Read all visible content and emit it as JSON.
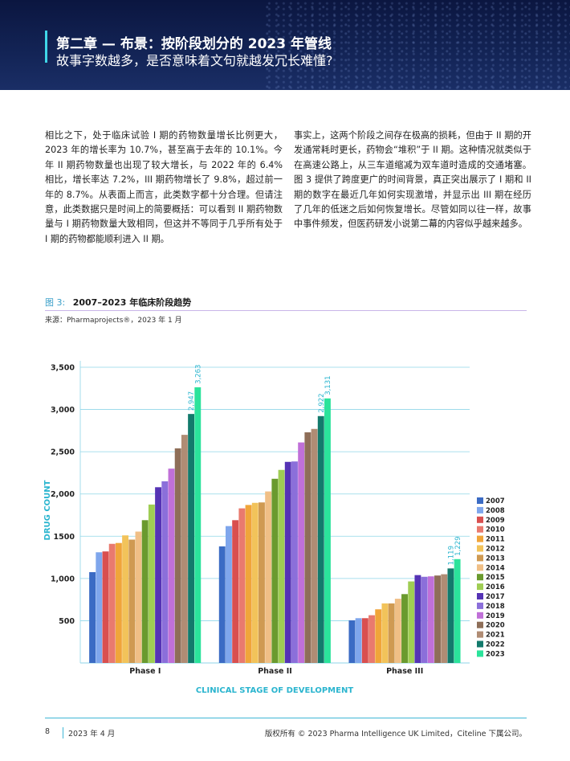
{
  "header": {
    "title": "第二章 — 布景：按阶段划分的 2023 年管线",
    "subtitle": "故事字数越多，是否意味着文句就越发冗长难懂?"
  },
  "body": {
    "left_column": "相比之下，处于临床试验 I 期的药物数量增长比例更大，2023 年的增长率为 10.7%，甚至高于去年的 10.1%。今年 II 期药物数量也出现了较大增长，与 2022 年的 6.4% 相比，增长率达 7.2%，III 期药物增长了 9.8%，超过前一年的 8.7%。从表面上而言，此类数字都十分合理。但请注意，此类数据只是时间上的简要概括：可以看到 II 期药物数量与 I 期药物数量大致相同，但这并不等同于几乎所有处于 I 期的药物都能顺利进入 II 期。",
    "right_column": "事实上，这两个阶段之间存在极高的损耗，但由于 II 期的开发通常耗时更长，药物会“堆积”于 II 期。这种情况就类似于在高速公路上，从三车道缩减为双车道时造成的交通堵塞。图 3 提供了跨度更广的时间背景，真正突出展示了 I 期和 II 期的数字在最近几年如何实现激增，并显示出 III 期在经历了几年的低迷之后如何恢复增长。尽管如同以往一样，故事中事件频发，但医药研发小说第二幕的内容似乎越来越多。"
  },
  "figure": {
    "number": "图 3:",
    "title": "2007–2023 年临床阶段趋势",
    "source": "来源：Pharmaprojects®，2023 年 1 月"
  },
  "chart_data": {
    "type": "bar",
    "xlabel": "CLINICAL STAGE OF DEVELOPMENT",
    "ylabel": "DRUG COUNT",
    "categories": [
      "Phase I",
      "Phase II",
      "Phase III"
    ],
    "ylim": [
      0,
      3500
    ],
    "yticks": [
      {
        "value": 500,
        "label": "500"
      },
      {
        "value": 1000,
        "label": "1,000"
      },
      {
        "value": 1500,
        "label": "1500"
      },
      {
        "value": 2000,
        "label": "2,000"
      },
      {
        "value": 2500,
        "label": "2,500"
      },
      {
        "value": 3000,
        "label": "3,000"
      },
      {
        "value": 3500,
        "label": "3,500"
      }
    ],
    "grid": true,
    "legend_position": "right",
    "series": [
      {
        "name": "2007",
        "color": "#3b6bc4",
        "values": [
          1075,
          1380,
          505
        ]
      },
      {
        "name": "2008",
        "color": "#7fa6ec",
        "values": [
          1310,
          1620,
          530
        ]
      },
      {
        "name": "2009",
        "color": "#d94f4f",
        "values": [
          1320,
          1690,
          530
        ]
      },
      {
        "name": "2010",
        "color": "#e97a6e",
        "values": [
          1410,
          1830,
          565
        ]
      },
      {
        "name": "2011",
        "color": "#f0a53a",
        "values": [
          1420,
          1870,
          635
        ]
      },
      {
        "name": "2012",
        "color": "#f2c35a",
        "values": [
          1510,
          1895,
          705
        ]
      },
      {
        "name": "2013",
        "color": "#cf9a52",
        "values": [
          1460,
          1900,
          705
        ]
      },
      {
        "name": "2014",
        "color": "#f0bf86",
        "values": [
          1555,
          2030,
          760
        ]
      },
      {
        "name": "2015",
        "color": "#6a9a2e",
        "values": [
          1690,
          2180,
          815
        ]
      },
      {
        "name": "2016",
        "color": "#9fcd53",
        "values": [
          1875,
          2285,
          965
        ]
      },
      {
        "name": "2017",
        "color": "#5533b5",
        "values": [
          2080,
          2380,
          1040
        ]
      },
      {
        "name": "2018",
        "color": "#8b6fda",
        "values": [
          2150,
          2385,
          1020
        ]
      },
      {
        "name": "2019",
        "color": "#c070d8",
        "values": [
          2300,
          2610,
          1025
        ]
      },
      {
        "name": "2020",
        "color": "#8e6e58",
        "values": [
          2540,
          2730,
          1035
        ]
      },
      {
        "name": "2021",
        "color": "#b08c74",
        "values": [
          2700,
          2770,
          1050
        ]
      },
      {
        "name": "2022",
        "color": "#137a6c",
        "values": [
          2947,
          2922,
          1119
        ]
      },
      {
        "name": "2023",
        "color": "#2be39b",
        "values": [
          3263,
          3131,
          1229
        ]
      }
    ],
    "data_labels": [
      {
        "series": "2022",
        "category": "Phase I",
        "label": "2,947"
      },
      {
        "series": "2023",
        "category": "Phase I",
        "label": "3,263"
      },
      {
        "series": "2022",
        "category": "Phase II",
        "label": "2,922"
      },
      {
        "series": "2023",
        "category": "Phase II",
        "label": "3,131"
      },
      {
        "series": "2022",
        "category": "Phase III",
        "label": "1,119"
      },
      {
        "series": "2023",
        "category": "Phase III",
        "label": "1,229"
      }
    ],
    "label_color": "#2bb5cf"
  },
  "footer": {
    "page": "8",
    "date": "2023 年 4 月",
    "copyright": "版权所有 © 2023 Pharma Intelligence UK Limited，Citeline 下属公司。"
  }
}
